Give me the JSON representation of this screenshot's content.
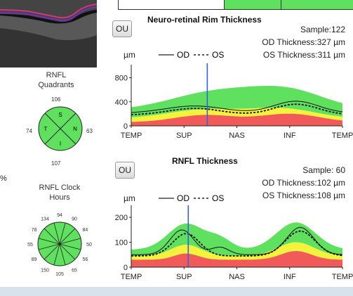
{
  "rim_chart": {
    "button_label": "OU",
    "title": "Neuro-retinal Rim Thickness",
    "sample": "Sample:122",
    "od_thickness": "OD Thickness:327 µm",
    "os_thickness": "OS Thickness:311 µm",
    "unit": "µm",
    "legend_od": "OD",
    "legend_os": "OS",
    "y_ticks": [
      "800",
      "400",
      "0"
    ],
    "x_ticks": [
      "TEMP",
      "SUP",
      "NAS",
      "INF",
      "TEMP"
    ]
  },
  "rnfl_chart": {
    "button_label": "OU",
    "title": "RNFL Thickness",
    "sample": "Sample: 60",
    "od_thickness": "OD Thickness:102 µm",
    "os_thickness": "OS Thickness:108 µm",
    "unit": "µm",
    "legend_od": "OD",
    "legend_os": "OS",
    "y_ticks": [
      "200",
      "100",
      "0"
    ],
    "x_ticks": [
      "TEMP",
      "SUP",
      "NAS",
      "INF",
      "TEMP"
    ]
  },
  "quadrants": {
    "title": "RNFL\nQuadrants",
    "top": "106",
    "left": "74",
    "right": "63",
    "bottom": "107",
    "labels": [
      "S",
      "T",
      "N",
      "I"
    ]
  },
  "clock_hours": {
    "title": "RNFL  Clock\nHours",
    "values": [
      "94",
      "90",
      "84",
      "50",
      "56",
      "65",
      "105",
      "150",
      "89",
      "55",
      "78",
      "134"
    ]
  },
  "left_edge_text": "%",
  "colors": {
    "green": "#5fe05f",
    "yellow": "#f3f33c",
    "red": "#f25a5a",
    "blue_marker": "#3a5fe0",
    "bottom_bar": "#d8e2ec"
  }
}
